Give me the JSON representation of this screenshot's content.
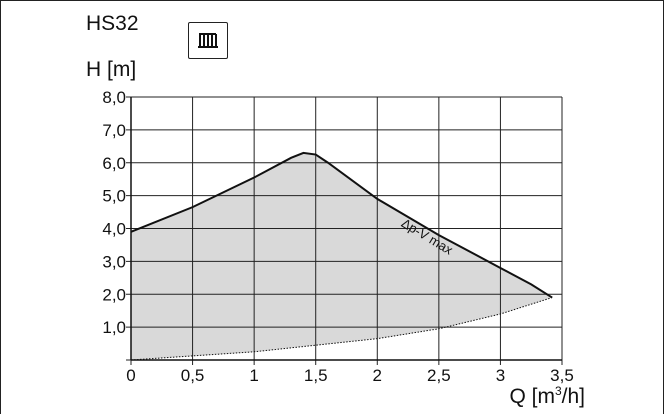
{
  "header": {
    "model": "HS32",
    "heating_icon": "radiator-icon"
  },
  "chart_data": {
    "type": "area",
    "title": "",
    "ylabel": "H [m]",
    "xlabel_main": "Q [m",
    "xlabel_sup": "3",
    "xlabel_tail": "/h]",
    "xlim": [
      0,
      3.5
    ],
    "ylim": [
      0,
      8
    ],
    "grid": true,
    "x_ticks": [
      "0",
      "0,5",
      "1",
      "1,5",
      "2",
      "2,5",
      "3",
      "3,5"
    ],
    "y_ticks": [
      "1,0",
      "2,0",
      "3,0",
      "4,0",
      "5,0",
      "6,0",
      "7,0",
      "8,0"
    ],
    "series": [
      {
        "name": "Δp-V max",
        "x": [
          0,
          0.5,
          1.0,
          1.3,
          1.4,
          1.5,
          1.6,
          2.0,
          2.5,
          3.0,
          3.25,
          3.42
        ],
        "y": [
          3.9,
          4.65,
          5.55,
          6.15,
          6.3,
          6.25,
          6.0,
          4.9,
          3.8,
          2.8,
          2.3,
          1.9
        ]
      },
      {
        "name": "",
        "x": [
          0,
          1.0,
          2.0,
          2.5,
          3.0,
          3.42
        ],
        "y": [
          0.0,
          0.25,
          0.65,
          0.95,
          1.4,
          1.9
        ]
      }
    ],
    "fill_color": "#d9d9d9",
    "line_color": "#111111"
  }
}
